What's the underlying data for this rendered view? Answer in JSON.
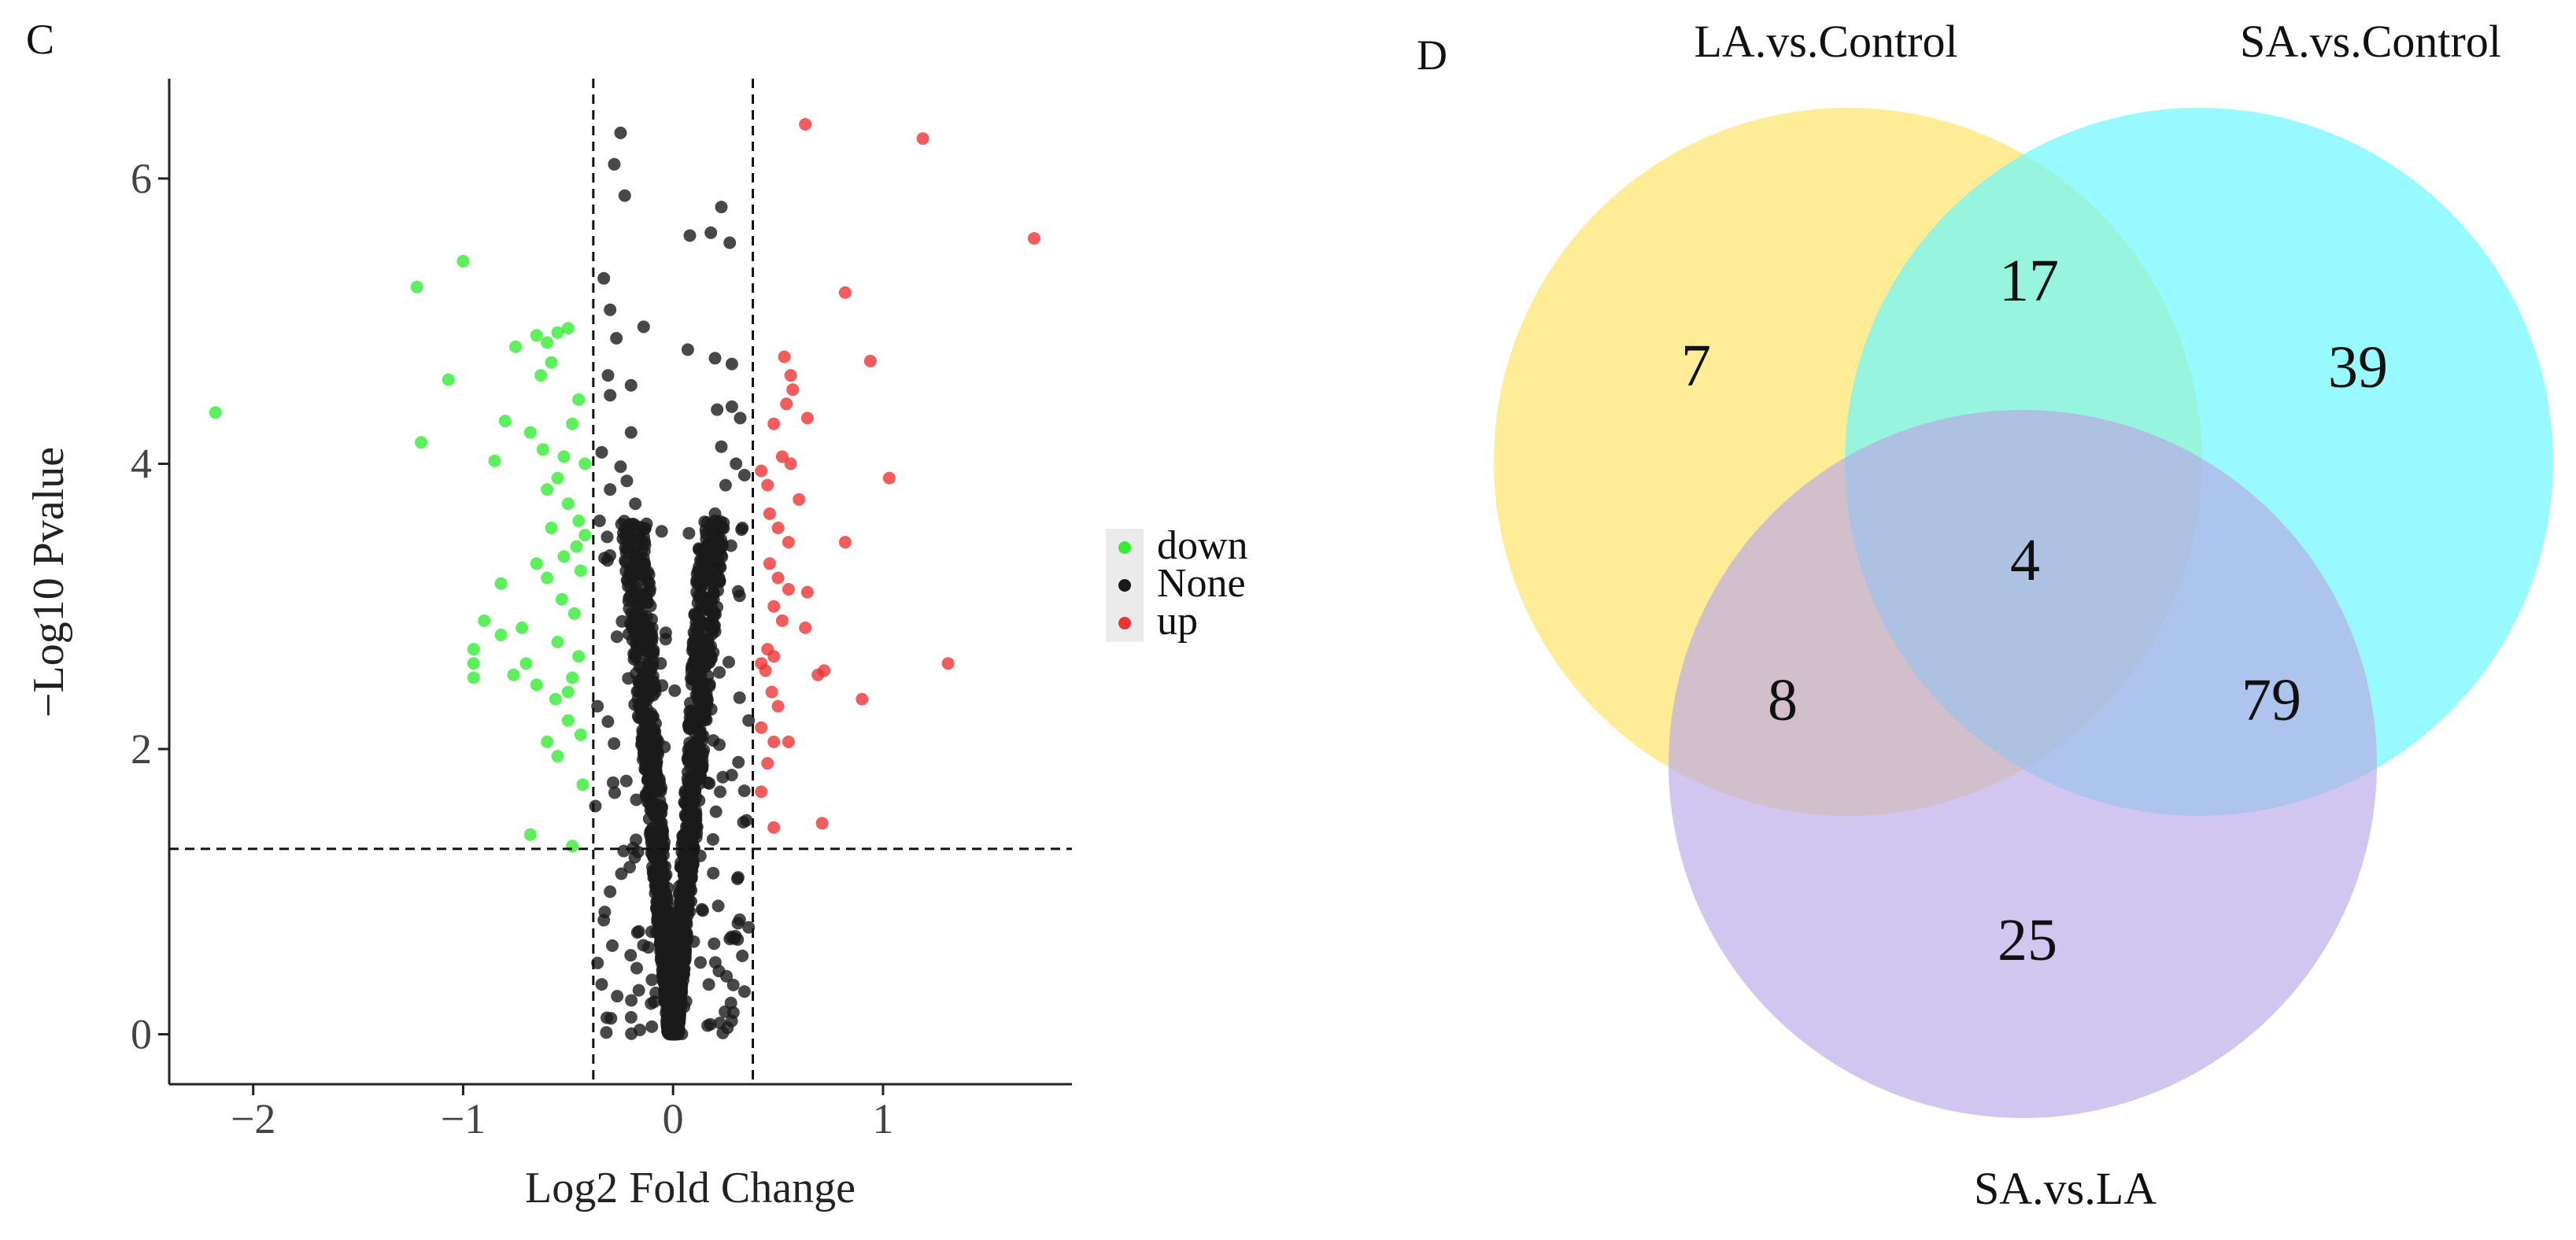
{
  "chart_data": [
    {
      "type": "scatter",
      "panel_label": "C",
      "xlabel": "Log2 Fold Change",
      "ylabel": "−Log10 Pvalue",
      "xlim": [
        -2.4,
        1.9
      ],
      "ylim": [
        -0.35,
        6.7
      ],
      "x_ticks": [
        -2,
        -1,
        0,
        1
      ],
      "y_ticks": [
        0,
        2,
        4,
        6
      ],
      "x_tick_labels": [
        "−2",
        "−1",
        "0",
        "1"
      ],
      "y_tick_labels": [
        "0",
        "2",
        "4",
        "6"
      ],
      "thresholds": {
        "log2fc": [
          -0.38,
          0.38
        ],
        "neg_log10_p": 1.3
      },
      "grid": false,
      "legend": {
        "position": "right",
        "entries": [
          {
            "label": "down",
            "color": "#33ee33"
          },
          {
            "label": "None",
            "color": "#1a1a1a"
          },
          {
            "label": "up",
            "color": "#ee3333"
          }
        ]
      },
      "series": [
        {
          "name": "down",
          "color": "#33ee33",
          "points": [
            [
              -2.18,
              4.36
            ],
            [
              -1.22,
              5.24
            ],
            [
              -1.0,
              5.42
            ],
            [
              -1.07,
              4.59
            ],
            [
              -1.2,
              4.15
            ],
            [
              -0.85,
              4.02
            ],
            [
              -0.75,
              4.82
            ],
            [
              -0.8,
              4.3
            ],
            [
              -0.65,
              4.9
            ],
            [
              -0.6,
              4.85
            ],
            [
              -0.55,
              4.92
            ],
            [
              -0.5,
              4.95
            ],
            [
              -0.58,
              4.71
            ],
            [
              -0.63,
              4.62
            ],
            [
              -0.68,
              4.22
            ],
            [
              -0.62,
              4.1
            ],
            [
              -0.52,
              4.05
            ],
            [
              -0.48,
              4.28
            ],
            [
              -0.45,
              4.45
            ],
            [
              -0.42,
              4.0
            ],
            [
              -0.55,
              3.9
            ],
            [
              -0.6,
              3.82
            ],
            [
              -0.5,
              3.72
            ],
            [
              -0.45,
              3.6
            ],
            [
              -0.42,
              3.5
            ],
            [
              -0.58,
              3.55
            ],
            [
              -0.52,
              3.35
            ],
            [
              -0.44,
              3.25
            ],
            [
              -0.65,
              3.3
            ],
            [
              -0.6,
              3.2
            ],
            [
              -0.53,
              3.05
            ],
            [
              -0.47,
              2.95
            ],
            [
              -0.82,
              3.16
            ],
            [
              -0.9,
              2.9
            ],
            [
              -0.72,
              2.85
            ],
            [
              -0.55,
              2.75
            ],
            [
              -0.45,
              2.65
            ],
            [
              -0.48,
              2.5
            ],
            [
              -0.95,
              2.7
            ],
            [
              -0.95,
              2.6
            ],
            [
              -0.82,
              2.8
            ],
            [
              -0.7,
              2.6
            ],
            [
              -0.76,
              2.52
            ],
            [
              -0.65,
              2.45
            ],
            [
              -0.56,
              2.35
            ],
            [
              -0.5,
              2.2
            ],
            [
              -0.44,
              2.1
            ],
            [
              -0.6,
              2.05
            ],
            [
              -0.55,
              1.95
            ],
            [
              -0.95,
              2.5
            ],
            [
              -0.43,
              1.75
            ],
            [
              -0.68,
              1.4
            ],
            [
              -0.48,
              1.32
            ],
            [
              -0.5,
              2.4
            ],
            [
              -0.46,
              3.42
            ]
          ]
        },
        {
          "name": "up",
          "color": "#ee3333",
          "points": [
            [
              0.63,
              6.38
            ],
            [
              1.19,
              6.28
            ],
            [
              1.72,
              5.58
            ],
            [
              0.82,
              5.2
            ],
            [
              0.94,
              4.72
            ],
            [
              0.53,
              4.75
            ],
            [
              0.56,
              4.62
            ],
            [
              0.57,
              4.52
            ],
            [
              0.54,
              4.42
            ],
            [
              0.64,
              4.32
            ],
            [
              0.48,
              4.28
            ],
            [
              0.52,
              4.05
            ],
            [
              0.56,
              4.0
            ],
            [
              1.03,
              3.9
            ],
            [
              0.6,
              3.75
            ],
            [
              0.45,
              3.85
            ],
            [
              0.42,
              3.95
            ],
            [
              0.46,
              3.65
            ],
            [
              0.5,
              3.55
            ],
            [
              0.55,
              3.45
            ],
            [
              0.82,
              3.45
            ],
            [
              0.46,
              3.3
            ],
            [
              0.5,
              3.2
            ],
            [
              0.55,
              3.12
            ],
            [
              0.64,
              3.1
            ],
            [
              0.48,
              3.0
            ],
            [
              0.52,
              2.9
            ],
            [
              0.63,
              2.85
            ],
            [
              0.45,
              2.7
            ],
            [
              0.42,
              2.6
            ],
            [
              0.44,
              2.55
            ],
            [
              0.48,
              2.65
            ],
            [
              1.31,
              2.6
            ],
            [
              0.72,
              2.55
            ],
            [
              0.69,
              2.52
            ],
            [
              0.47,
              2.4
            ],
            [
              0.5,
              2.3
            ],
            [
              0.9,
              2.35
            ],
            [
              0.42,
              2.15
            ],
            [
              0.48,
              2.05
            ],
            [
              0.55,
              2.05
            ],
            [
              0.45,
              1.9
            ],
            [
              0.42,
              1.7
            ],
            [
              0.71,
              1.48
            ],
            [
              0.48,
              1.45
            ]
          ]
        },
        {
          "name": "None",
          "color": "#1a1a1a",
          "points": [
            [
              -0.25,
              6.32
            ],
            [
              -0.28,
              6.1
            ],
            [
              -0.23,
              5.88
            ],
            [
              0.23,
              5.8
            ],
            [
              0.18,
              5.62
            ],
            [
              0.08,
              5.6
            ],
            [
              0.27,
              5.55
            ],
            [
              -0.33,
              5.3
            ],
            [
              -0.3,
              5.08
            ],
            [
              -0.14,
              4.96
            ],
            [
              -0.27,
              4.88
            ],
            [
              0.07,
              4.8
            ],
            [
              0.2,
              4.74
            ],
            [
              0.28,
              4.7
            ],
            [
              -0.2,
              4.55
            ],
            [
              -0.3,
              4.48
            ],
            [
              0.28,
              4.4
            ],
            [
              0.21,
              4.38
            ],
            [
              -0.31,
              4.62
            ],
            [
              0.32,
              4.32
            ],
            [
              -0.2,
              4.22
            ],
            [
              0.23,
              4.12
            ],
            [
              -0.34,
              4.08
            ],
            [
              0.3,
              4.0
            ],
            [
              -0.25,
              3.98
            ],
            [
              0.34,
              3.92
            ],
            [
              -0.22,
              3.88
            ],
            [
              0.25,
              3.85
            ],
            [
              -0.3,
              3.82
            ],
            [
              -0.18,
              3.72
            ],
            [
              0.2,
              3.65
            ],
            [
              -0.35,
              3.6
            ],
            [
              0.33,
              3.55
            ],
            [
              -0.36,
              0.5
            ],
            [
              -0.33,
              0.8
            ],
            [
              0.36,
              0.75
            ],
            [
              0.33,
              0.55
            ],
            [
              -0.3,
              1.0
            ],
            [
              0.31,
              1.1
            ],
            [
              -0.37,
              1.6
            ],
            [
              0.35,
              1.5
            ],
            [
              -0.36,
              2.3
            ],
            [
              0.36,
              2.2
            ],
            [
              0.34,
              0.3
            ],
            [
              -0.34,
              0.35
            ]
          ]
        }
      ]
    },
    {
      "type": "venn",
      "panel_label": "D",
      "sets": [
        {
          "name": "LA.vs.Control",
          "color": "#fde56f"
        },
        {
          "name": "SA.vs.Control",
          "color": "#66f7ff"
        },
        {
          "name": "SA.vs.LA",
          "color": "#b9a8e6"
        }
      ],
      "regions": [
        {
          "sets": [
            "LA.vs.Control"
          ],
          "count": 7
        },
        {
          "sets": [
            "SA.vs.Control"
          ],
          "count": 39
        },
        {
          "sets": [
            "SA.vs.LA"
          ],
          "count": 25
        },
        {
          "sets": [
            "LA.vs.Control",
            "SA.vs.Control"
          ],
          "count": 17
        },
        {
          "sets": [
            "LA.vs.Control",
            "SA.vs.LA"
          ],
          "count": 8
        },
        {
          "sets": [
            "SA.vs.Control",
            "SA.vs.LA"
          ],
          "count": 79
        },
        {
          "sets": [
            "LA.vs.Control",
            "SA.vs.Control",
            "SA.vs.LA"
          ],
          "count": 4
        }
      ]
    }
  ]
}
